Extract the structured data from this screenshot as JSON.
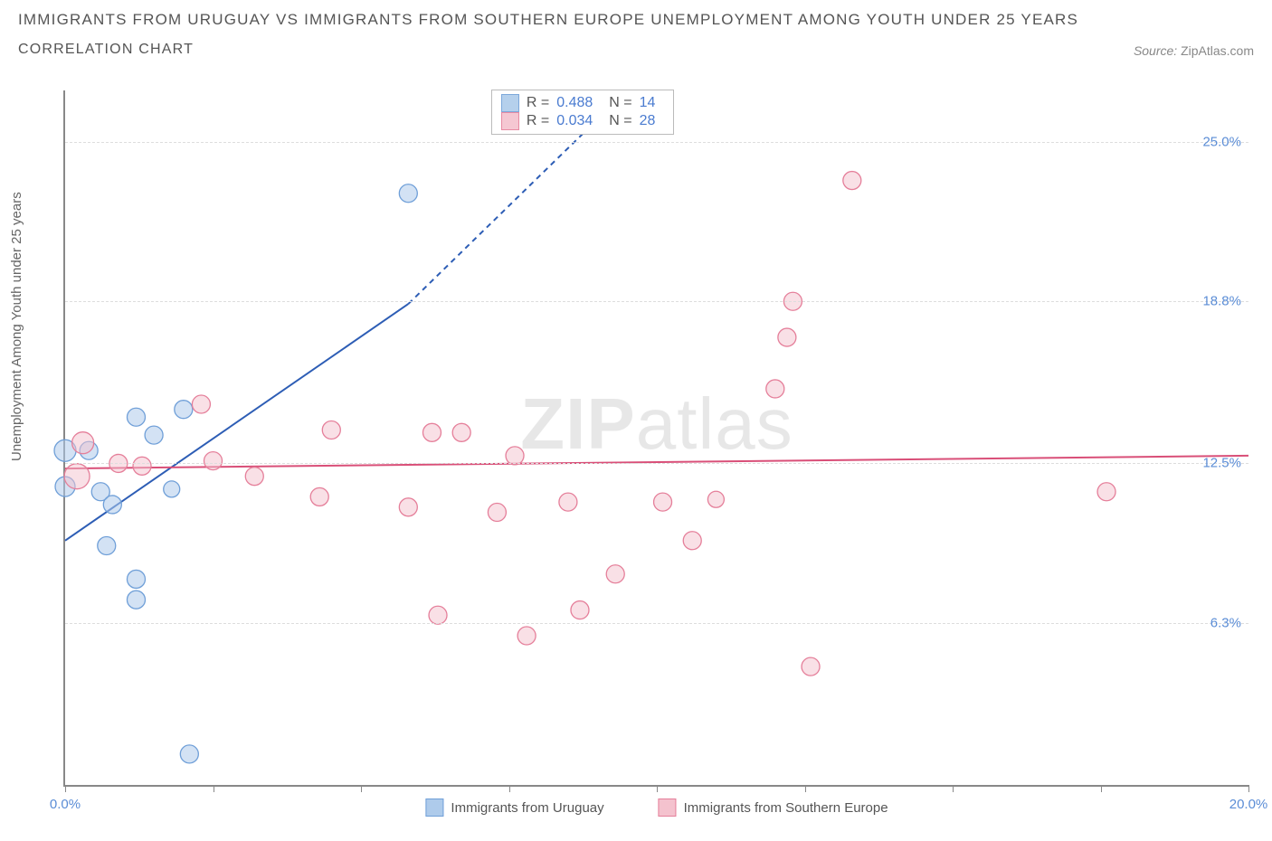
{
  "title": "IMMIGRANTS FROM URUGUAY VS IMMIGRANTS FROM SOUTHERN EUROPE UNEMPLOYMENT AMONG YOUTH UNDER 25 YEARS",
  "subtitle": "CORRELATION CHART",
  "source_label": "Source:",
  "source_name": "ZipAtlas.com",
  "y_axis_label": "Unemployment Among Youth under 25 years",
  "watermark_a": "ZIP",
  "watermark_b": "atlas",
  "chart": {
    "type": "scatter",
    "xlim": [
      0,
      20
    ],
    "ylim": [
      0,
      27
    ],
    "x_ticks": [
      0,
      2.5,
      5,
      7.5,
      10,
      12.5,
      15,
      17.5,
      20
    ],
    "x_tick_labels": {
      "0": "0.0%",
      "20": "20.0%"
    },
    "y_ticks": [
      6.3,
      12.5,
      18.8,
      25.0
    ],
    "y_tick_labels": [
      "6.3%",
      "12.5%",
      "18.8%",
      "25.0%"
    ],
    "grid_color": "#dddddd",
    "background_color": "#ffffff",
    "series": [
      {
        "name": "Immigrants from Uruguay",
        "color_fill": "#aecbeb",
        "color_stroke": "#6f9fd8",
        "fill_opacity": 0.55,
        "marker_r": 10,
        "R": "0.488",
        "N": "14",
        "trend": {
          "x1": 0,
          "y1": 9.5,
          "x2": 5.8,
          "y2": 18.7,
          "dash_to_x": 9.5,
          "dash_to_y": 27,
          "color": "#2d5db5",
          "width": 2
        },
        "points": [
          {
            "x": 0.0,
            "y": 13.0,
            "r": 12
          },
          {
            "x": 0.0,
            "y": 11.6,
            "r": 11
          },
          {
            "x": 0.4,
            "y": 13.0,
            "r": 10
          },
          {
            "x": 0.6,
            "y": 11.4,
            "r": 10
          },
          {
            "x": 0.8,
            "y": 10.9,
            "r": 10
          },
          {
            "x": 0.7,
            "y": 9.3,
            "r": 10
          },
          {
            "x": 1.2,
            "y": 14.3,
            "r": 10
          },
          {
            "x": 1.5,
            "y": 13.6,
            "r": 10
          },
          {
            "x": 1.2,
            "y": 8.0,
            "r": 10
          },
          {
            "x": 1.2,
            "y": 7.2,
            "r": 10
          },
          {
            "x": 2.0,
            "y": 14.6,
            "r": 10
          },
          {
            "x": 2.1,
            "y": 1.2,
            "r": 10
          },
          {
            "x": 5.8,
            "y": 23.0,
            "r": 10
          },
          {
            "x": 1.8,
            "y": 11.5,
            "r": 9
          }
        ]
      },
      {
        "name": "Immigrants from Southern Europe",
        "color_fill": "#f4c2ce",
        "color_stroke": "#e57f9a",
        "fill_opacity": 0.5,
        "marker_r": 10,
        "R": "0.034",
        "N": "28",
        "trend": {
          "x1": 0,
          "y1": 12.3,
          "x2": 20,
          "y2": 12.8,
          "color": "#d94f78",
          "width": 2
        },
        "points": [
          {
            "x": 0.2,
            "y": 12.0,
            "r": 14
          },
          {
            "x": 0.3,
            "y": 13.3,
            "r": 12
          },
          {
            "x": 0.9,
            "y": 12.5,
            "r": 10
          },
          {
            "x": 1.3,
            "y": 12.4,
            "r": 10
          },
          {
            "x": 2.3,
            "y": 14.8,
            "r": 10
          },
          {
            "x": 2.5,
            "y": 12.6,
            "r": 10
          },
          {
            "x": 3.2,
            "y": 12.0,
            "r": 10
          },
          {
            "x": 4.3,
            "y": 11.2,
            "r": 10
          },
          {
            "x": 4.5,
            "y": 13.8,
            "r": 10
          },
          {
            "x": 5.8,
            "y": 10.8,
            "r": 10
          },
          {
            "x": 6.2,
            "y": 13.7,
            "r": 10
          },
          {
            "x": 6.3,
            "y": 6.6,
            "r": 10
          },
          {
            "x": 6.7,
            "y": 13.7,
            "r": 10
          },
          {
            "x": 7.3,
            "y": 10.6,
            "r": 10
          },
          {
            "x": 7.6,
            "y": 12.8,
            "r": 10
          },
          {
            "x": 7.8,
            "y": 5.8,
            "r": 10
          },
          {
            "x": 8.5,
            "y": 11.0,
            "r": 10
          },
          {
            "x": 8.7,
            "y": 6.8,
            "r": 10
          },
          {
            "x": 9.3,
            "y": 8.2,
            "r": 10
          },
          {
            "x": 10.1,
            "y": 11.0,
            "r": 10
          },
          {
            "x": 10.6,
            "y": 9.5,
            "r": 10
          },
          {
            "x": 12.0,
            "y": 15.4,
            "r": 10
          },
          {
            "x": 12.2,
            "y": 17.4,
            "r": 10
          },
          {
            "x": 12.3,
            "y": 18.8,
            "r": 10
          },
          {
            "x": 12.6,
            "y": 4.6,
            "r": 10
          },
          {
            "x": 13.3,
            "y": 23.5,
            "r": 10
          },
          {
            "x": 17.6,
            "y": 11.4,
            "r": 10
          },
          {
            "x": 11.0,
            "y": 11.1,
            "r": 9
          }
        ]
      }
    ]
  },
  "legend_stats_labels": {
    "R": "R =",
    "N": "N ="
  }
}
